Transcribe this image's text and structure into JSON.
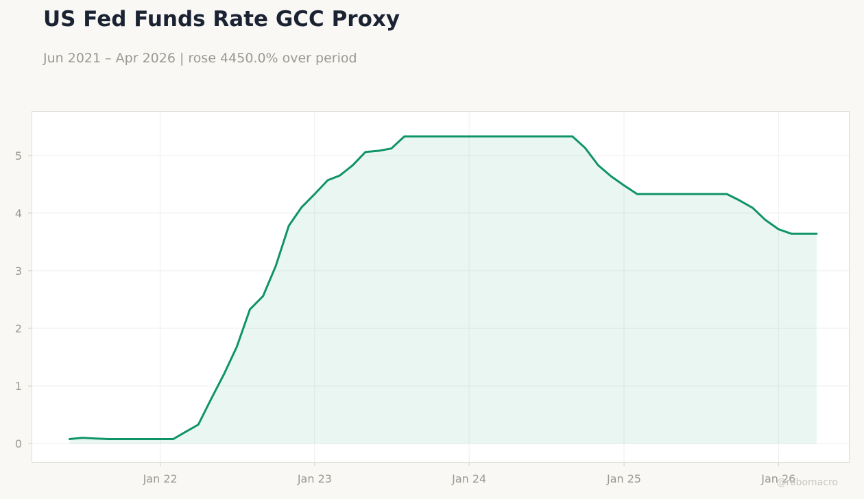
{
  "header": {
    "title": "US Fed Funds Rate GCC Proxy",
    "subtitle": "Jun 2021 – Apr 2026 | rose 4450.0% over period"
  },
  "watermark": "@robomacro",
  "colors": {
    "line": "#0f9466",
    "fill": "#0f9466",
    "background": "#f9f8f5",
    "plot_background": "#ffffff",
    "grid": "#eeeeec",
    "frame": "#dddcd6"
  },
  "chart_data": {
    "type": "area",
    "title": "US Fed Funds Rate GCC Proxy",
    "xlabel": "",
    "ylabel": "",
    "grid": true,
    "ylim": [
      -0.33,
      5.77
    ],
    "xlim": [
      "2021-03-03",
      "2026-06-18"
    ],
    "x_ticks": [
      {
        "date": "2022-01-01",
        "label": "Jan 22"
      },
      {
        "date": "2023-01-01",
        "label": "Jan 23"
      },
      {
        "date": "2024-01-01",
        "label": "Jan 24"
      },
      {
        "date": "2025-01-01",
        "label": "Jan 25"
      },
      {
        "date": "2026-01-01",
        "label": "Jan 26"
      }
    ],
    "y_ticks": [
      0,
      1,
      2,
      3,
      4,
      5
    ],
    "series": [
      {
        "x": [
          "2021-06-01",
          "2021-07-01",
          "2021-08-01",
          "2021-09-01",
          "2021-10-01",
          "2021-11-01",
          "2021-12-01",
          "2022-01-01",
          "2022-02-01",
          "2022-03-01",
          "2022-04-01",
          "2022-05-01",
          "2022-06-01",
          "2022-07-01",
          "2022-08-01",
          "2022-09-01",
          "2022-10-01",
          "2022-11-01",
          "2022-12-01",
          "2023-01-01",
          "2023-02-01",
          "2023-03-01",
          "2023-04-01",
          "2023-05-01",
          "2023-06-01",
          "2023-07-01",
          "2023-08-01",
          "2023-09-01",
          "2023-10-01",
          "2023-11-01",
          "2023-12-01",
          "2024-01-01",
          "2024-02-01",
          "2024-03-01",
          "2024-04-01",
          "2024-05-01",
          "2024-06-01",
          "2024-07-01",
          "2024-08-01",
          "2024-09-01",
          "2024-10-01",
          "2024-11-01",
          "2024-12-01",
          "2025-01-01",
          "2025-02-01",
          "2025-03-01",
          "2025-04-01",
          "2025-05-01",
          "2025-06-01",
          "2025-07-01",
          "2025-08-01",
          "2025-09-01",
          "2025-10-01",
          "2025-11-01",
          "2025-12-01",
          "2026-01-01",
          "2026-02-01",
          "2026-03-01",
          "2026-04-01"
        ],
        "values": [
          0.08,
          0.1,
          0.09,
          0.08,
          0.08,
          0.08,
          0.08,
          0.08,
          0.08,
          0.2,
          0.33,
          0.77,
          1.21,
          1.68,
          2.33,
          2.56,
          3.08,
          3.78,
          4.1,
          4.33,
          4.57,
          4.65,
          4.83,
          5.06,
          5.08,
          5.12,
          5.33,
          5.33,
          5.33,
          5.33,
          5.33,
          5.33,
          5.33,
          5.33,
          5.33,
          5.33,
          5.33,
          5.33,
          5.33,
          5.33,
          5.13,
          4.83,
          4.64,
          4.48,
          4.33,
          4.33,
          4.33,
          4.33,
          4.33,
          4.33,
          4.33,
          4.33,
          4.22,
          4.09,
          3.88,
          3.72,
          3.64,
          3.64,
          3.64
        ]
      }
    ]
  }
}
